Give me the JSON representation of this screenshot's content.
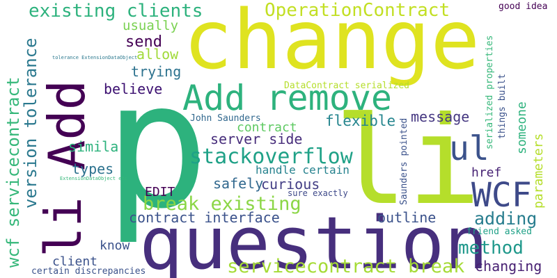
{
  "words": [
    {
      "text": "change",
      "color": "#dfe320"
    },
    {
      "text": "p",
      "color": "#2db27d"
    },
    {
      "text": "li",
      "color": "#b5de2b"
    },
    {
      "text": "question",
      "color": "#472f7d"
    },
    {
      "text": "Add",
      "color": "#440154"
    },
    {
      "text": "li",
      "color": "#440154"
    },
    {
      "text": "Add remove",
      "color": "#2db27d"
    },
    {
      "text": "WCF",
      "color": "#3e4a89"
    },
    {
      "text": "ul",
      "color": "#3b528b"
    },
    {
      "text": "servicecontract break",
      "color": "#a5db36"
    },
    {
      "text": "stackoverflow",
      "color": "#1fa187"
    },
    {
      "text": "break existing",
      "color": "#8bd646"
    },
    {
      "text": "wcf servicecontract",
      "color": "#35b779"
    },
    {
      "text": "version tolerance",
      "color": "#2a788e"
    },
    {
      "text": "OperationContract",
      "color": "#c2df23"
    },
    {
      "text": "existing clients",
      "color": "#2db27d"
    },
    {
      "text": "method",
      "color": "#1f988b"
    },
    {
      "text": "adding",
      "color": "#287d8e"
    },
    {
      "text": "contract interface",
      "color": "#3b528b"
    },
    {
      "text": "server side",
      "color": "#472d7b"
    },
    {
      "text": "safely",
      "color": "#31688e"
    },
    {
      "text": "curious",
      "color": "#433e85"
    },
    {
      "text": "flexible",
      "color": "#25858e"
    },
    {
      "text": "contract",
      "color": "#5ec962"
    },
    {
      "text": "message",
      "color": "#453781"
    },
    {
      "text": "outline",
      "color": "#3b528b"
    },
    {
      "text": "changing",
      "color": "#482173"
    },
    {
      "text": "send",
      "color": "#440154"
    },
    {
      "text": "allow",
      "color": "#a0da39"
    },
    {
      "text": "trying",
      "color": "#2c728e"
    },
    {
      "text": "believe",
      "color": "#3b0f70"
    },
    {
      "text": "usually",
      "color": "#7ad151"
    },
    {
      "text": "similar",
      "color": "#2db27d"
    },
    {
      "text": "types",
      "color": "#2c728e"
    },
    {
      "text": "EDIT",
      "color": "#440154"
    },
    {
      "text": "handle certain",
      "color": "#26828e"
    },
    {
      "text": "href",
      "color": "#482475"
    },
    {
      "text": "know",
      "color": "#3b528b"
    },
    {
      "text": "client",
      "color": "#3b528b"
    },
    {
      "text": "parameters",
      "color": "#b5de2b"
    },
    {
      "text": "someone",
      "color": "#2db27d"
    },
    {
      "text": "DataContract serialized",
      "color": "#b5de2b"
    },
    {
      "text": "John Saunders",
      "color": "#31688e"
    },
    {
      "text": "sure exactly",
      "color": "#3e4989"
    },
    {
      "text": "certain discrepancies",
      "color": "#3b528b"
    },
    {
      "text": "friend asked",
      "color": "#1fa187"
    },
    {
      "text": "good idea",
      "color": "#440154"
    },
    {
      "text": "serialized properties",
      "color": "#35b779"
    },
    {
      "text": "things built",
      "color": "#3b528b"
    },
    {
      "text": "Saunders pointed",
      "color": "#3b528b"
    },
    {
      "text": "tolerance ExtensionDataObject",
      "color": "#2a788e"
    },
    {
      "text": "ExtensionDataObject etc",
      "color": "#35b779"
    }
  ]
}
